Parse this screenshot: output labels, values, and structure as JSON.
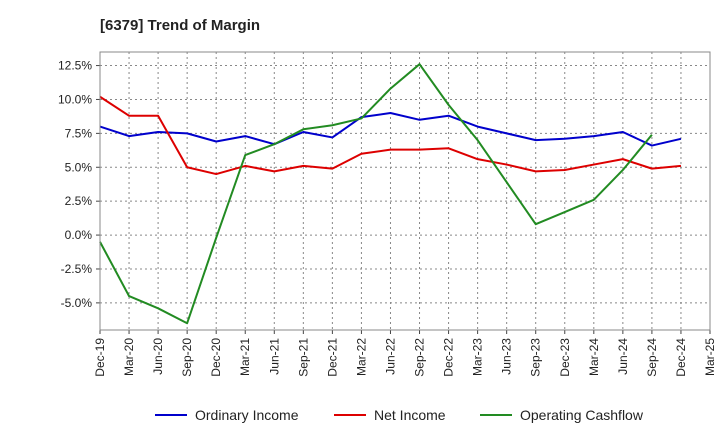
{
  "chart_data": {
    "type": "line",
    "title": "[6379]  Trend of Margin",
    "xlabel": "",
    "ylabel": "",
    "x": [
      "Dec-19",
      "Mar-20",
      "Jun-20",
      "Sep-20",
      "Dec-20",
      "Mar-21",
      "Jun-21",
      "Sep-21",
      "Dec-21",
      "Mar-22",
      "Jun-22",
      "Sep-22",
      "Dec-22",
      "Mar-23",
      "Jun-23",
      "Sep-23",
      "Dec-23",
      "Mar-24",
      "Jun-24",
      "Sep-24",
      "Dec-24",
      "Mar-25"
    ],
    "ylim": [
      -7.0,
      13.5
    ],
    "yticks": [
      12.5,
      10.0,
      7.5,
      5.0,
      2.5,
      0.0,
      -2.5,
      -5.0
    ],
    "ytick_labels": [
      "12.5%",
      "10.0%",
      "7.5%",
      "5.0%",
      "2.5%",
      "0.0%",
      "-2.5%",
      "-5.0%"
    ],
    "grid": true,
    "legend_position": "bottom",
    "series": [
      {
        "name": "Ordinary Income",
        "color": "#0000cc",
        "values": [
          8.0,
          7.3,
          7.6,
          7.5,
          6.9,
          7.3,
          6.7,
          7.6,
          7.2,
          8.7,
          9.0,
          8.5,
          8.8,
          8.0,
          7.5,
          7.0,
          7.1,
          7.3,
          7.6,
          6.6,
          7.1,
          null
        ]
      },
      {
        "name": "Net Income",
        "color": "#dd0000",
        "values": [
          10.2,
          8.8,
          8.8,
          5.0,
          4.5,
          5.1,
          4.7,
          5.1,
          4.9,
          6.0,
          6.3,
          6.3,
          6.4,
          5.6,
          5.2,
          4.7,
          4.8,
          5.2,
          5.6,
          4.9,
          5.1,
          null
        ]
      },
      {
        "name": "Operating Cashflow",
        "color": "#228b22",
        "values": [
          -0.5,
          -4.5,
          -5.4,
          -6.5,
          -0.2,
          5.9,
          6.7,
          7.8,
          8.1,
          8.6,
          10.8,
          12.6,
          9.6,
          7.0,
          3.9,
          0.8,
          1.7,
          2.6,
          4.8,
          7.4,
          null,
          null
        ]
      }
    ]
  }
}
